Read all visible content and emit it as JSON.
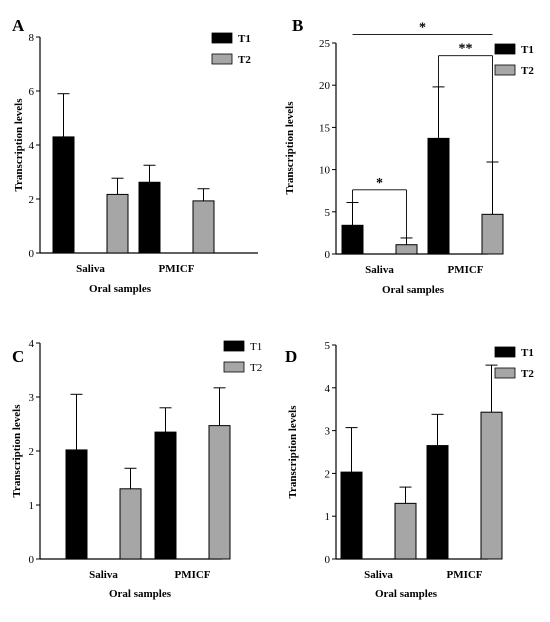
{
  "colors": {
    "t1": "#000000",
    "t2": "#a6a6a6",
    "axis": "#000000"
  },
  "chart_data": [
    {
      "type": "bar",
      "panel": "A",
      "categories": [
        "Saliva",
        "PMICF"
      ],
      "series": [
        {
          "name": "T1",
          "values": [
            4.3,
            2.62
          ],
          "errors": [
            1.6,
            0.63
          ]
        },
        {
          "name": "T2",
          "values": [
            2.17,
            1.93
          ],
          "errors": [
            0.6,
            0.45
          ]
        }
      ],
      "xlabel": "Oral samples",
      "ylabel": "Transcription levels",
      "ylim": [
        0,
        8
      ],
      "yticks": [
        0,
        2,
        4,
        6,
        8
      ],
      "legend": "top-right",
      "legend_bold": true,
      "annotations": []
    },
    {
      "type": "bar",
      "panel": "B",
      "categories": [
        "Saliva",
        "PMICF"
      ],
      "series": [
        {
          "name": "T1",
          "values": [
            3.4,
            13.7
          ],
          "errors": [
            2.7,
            6.1
          ]
        },
        {
          "name": "T2",
          "values": [
            1.1,
            4.7
          ],
          "errors": [
            0.8,
            6.2
          ]
        }
      ],
      "xlabel": "Oral samples",
      "ylabel": "Transcription levels",
      "ylim": [
        0,
        25
      ],
      "yticks": [
        0,
        5,
        10,
        15,
        20,
        25
      ],
      "legend": "top-right",
      "legend_bold": true,
      "annotations": [
        {
          "label": "*",
          "from": [
            0,
            0
          ],
          "to": [
            0,
            1
          ],
          "y": 7.6,
          "drop_to": [
            6.1,
            1.9
          ]
        },
        {
          "label": "**",
          "from": [
            1,
            0
          ],
          "to": [
            1,
            1
          ],
          "y": 23.5,
          "drop_to": [
            19.8,
            10.9
          ]
        },
        {
          "label": "*",
          "from": [
            0,
            0
          ],
          "to": [
            1,
            1
          ],
          "y": 26.0,
          "drop_to": null
        }
      ]
    },
    {
      "type": "bar",
      "panel": "C",
      "categories": [
        "Saliva",
        "PMICF"
      ],
      "series": [
        {
          "name": "T1",
          "values": [
            2.02,
            2.35
          ],
          "errors": [
            1.03,
            0.45
          ]
        },
        {
          "name": "T2",
          "values": [
            1.3,
            2.47
          ],
          "errors": [
            0.38,
            0.7
          ]
        }
      ],
      "xlabel": "Oral samples",
      "ylabel": "Transcription levels",
      "ylim": [
        0,
        4
      ],
      "yticks": [
        0,
        1,
        2,
        3,
        4
      ],
      "legend": "top-right",
      "legend_bold": false,
      "annotations": []
    },
    {
      "type": "bar",
      "panel": "D",
      "categories": [
        "Saliva",
        "PMICF"
      ],
      "series": [
        {
          "name": "T1",
          "values": [
            2.03,
            2.65
          ],
          "errors": [
            1.04,
            0.73
          ]
        },
        {
          "name": "T2",
          "values": [
            1.3,
            3.43
          ],
          "errors": [
            0.38,
            1.1
          ]
        }
      ],
      "xlabel": "Oral samples",
      "ylabel": "Transcription levels",
      "ylim": [
        0,
        5
      ],
      "yticks": [
        0,
        1,
        2,
        3,
        4,
        5
      ],
      "legend": "top-right",
      "legend_bold": true,
      "annotations": []
    }
  ]
}
